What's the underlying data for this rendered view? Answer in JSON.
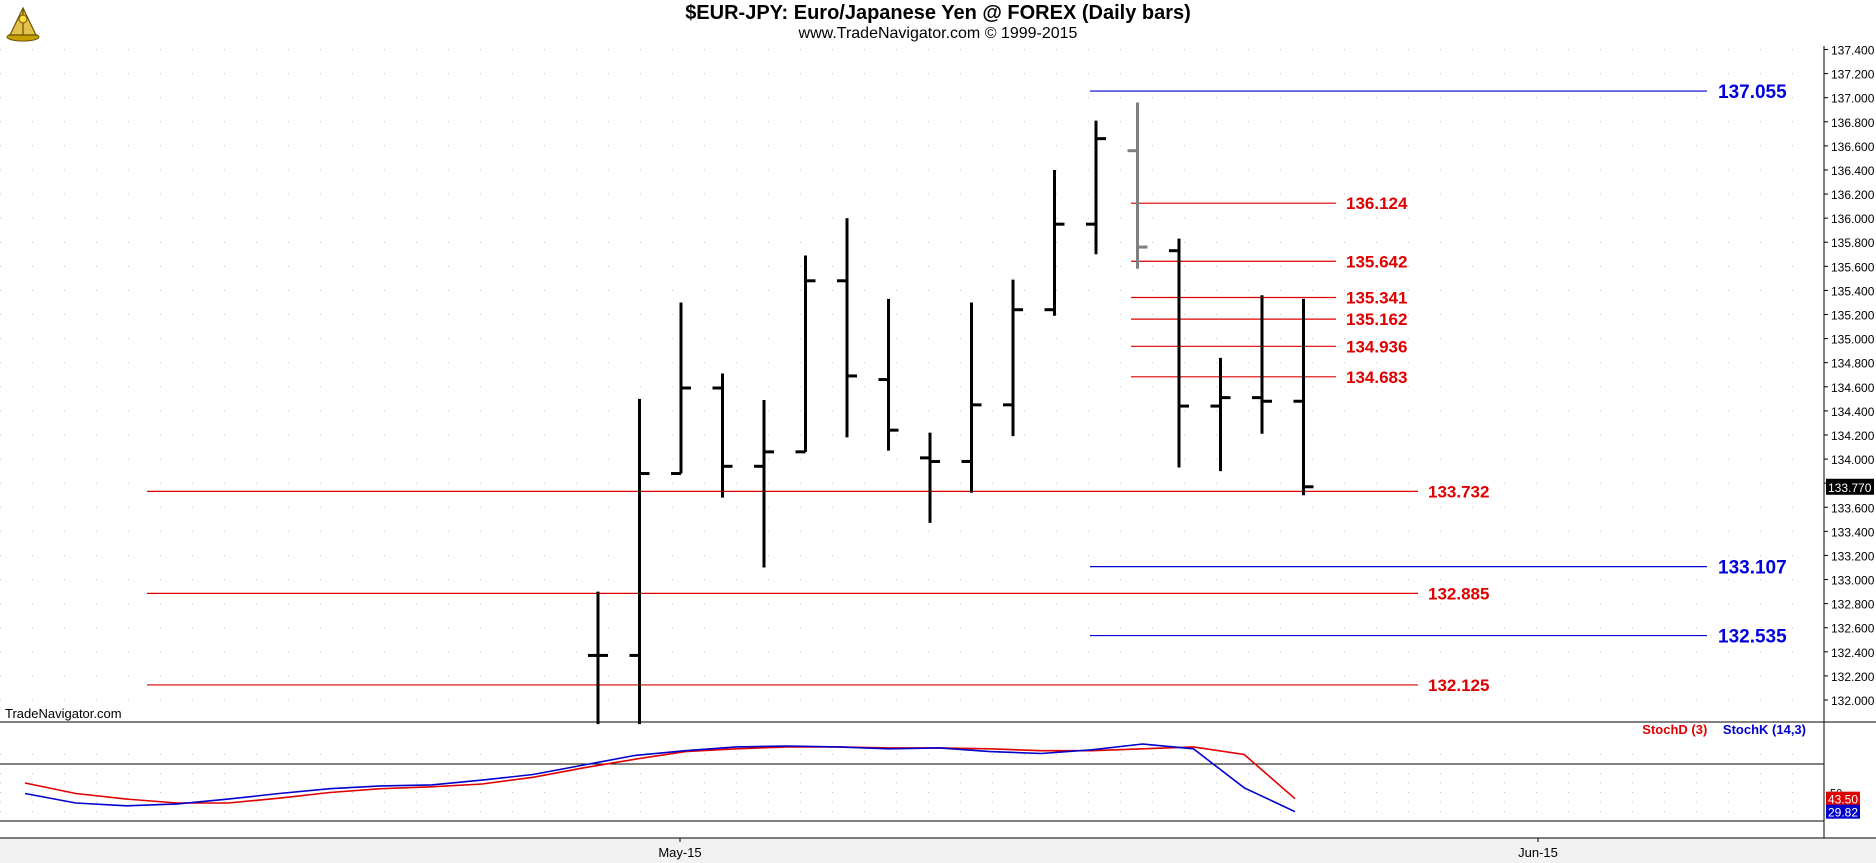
{
  "header": {
    "title": "$EUR-JPY:  Euro/Japanese Yen @ FOREX  (Daily bars)",
    "subtitle": "www.TradeNavigator.com © 1999-2015"
  },
  "watermark": "TradeNavigator.com",
  "colors": {
    "red_level": "#e00000",
    "blue_level": "#0000dd",
    "bars": "#000000",
    "last_bar": "#808080",
    "stoch_d": "#e00000",
    "stoch_k": "#0000cc"
  },
  "chart_data": [
    {
      "type": "ohlc",
      "title": "$EUR-JPY:  Euro/Japanese Yen @ FOREX  (Daily bars)",
      "ylim": [
        131.8,
        137.5
      ],
      "y_ticks": [
        "132.000",
        "132.200",
        "132.400",
        "132.600",
        "132.800",
        "133.000",
        "133.200",
        "133.400",
        "133.600",
        "133.800",
        "134.000",
        "134.200",
        "134.400",
        "134.600",
        "134.800",
        "135.000",
        "135.200",
        "135.400",
        "135.600",
        "135.800",
        "136.000",
        "136.200",
        "136.400",
        "136.600",
        "136.800",
        "137.000",
        "137.200",
        "137.400"
      ],
      "x_labels": [
        "May-15",
        "Jun-15"
      ],
      "last_price": "133.770",
      "bars": [
        {
          "o": 132.37,
          "h": 132.9,
          "l": 131.8,
          "c": 132.37
        },
        {
          "o": 132.37,
          "h": 134.5,
          "l": 131.8,
          "c": 133.88
        },
        {
          "o": 133.88,
          "h": 135.3,
          "l": 133.88,
          "c": 134.59
        },
        {
          "o": 134.59,
          "h": 134.71,
          "l": 133.68,
          "c": 133.94
        },
        {
          "o": 133.94,
          "h": 134.49,
          "l": 133.1,
          "c": 134.06
        },
        {
          "o": 134.06,
          "h": 135.69,
          "l": 134.06,
          "c": 135.48
        },
        {
          "o": 135.48,
          "h": 136.0,
          "l": 134.18,
          "c": 134.69
        },
        {
          "o": 134.66,
          "h": 135.33,
          "l": 134.07,
          "c": 134.24
        },
        {
          "o": 134.01,
          "h": 134.22,
          "l": 133.47,
          "c": 133.98
        },
        {
          "o": 133.98,
          "h": 135.3,
          "l": 133.72,
          "c": 134.45
        },
        {
          "o": 134.45,
          "h": 135.49,
          "l": 134.19,
          "c": 135.24
        },
        {
          "o": 135.24,
          "h": 136.4,
          "l": 135.19,
          "c": 135.95
        },
        {
          "o": 135.95,
          "h": 136.81,
          "l": 135.7,
          "c": 136.66
        },
        {
          "o": 136.56,
          "h": 136.96,
          "l": 135.58,
          "c": 135.76
        },
        {
          "o": 135.73,
          "h": 135.83,
          "l": 133.93,
          "c": 134.44
        },
        {
          "o": 134.44,
          "h": 134.84,
          "l": 133.9,
          "c": 134.51
        },
        {
          "o": 134.51,
          "h": 135.36,
          "l": 134.21,
          "c": 134.48
        },
        {
          "o": 134.48,
          "h": 135.33,
          "l": 133.7,
          "c": 133.77
        }
      ],
      "levels": [
        {
          "value": 137.055,
          "label": "137.055",
          "color": "blue"
        },
        {
          "value": 136.124,
          "label": "136.124",
          "color": "red"
        },
        {
          "value": 135.642,
          "label": "135.642",
          "color": "red"
        },
        {
          "value": 135.341,
          "label": "135.341",
          "color": "red"
        },
        {
          "value": 135.162,
          "label": "135.162",
          "color": "red"
        },
        {
          "value": 134.936,
          "label": "134.936",
          "color": "red"
        },
        {
          "value": 134.683,
          "label": "134.683",
          "color": "red"
        },
        {
          "value": 133.732,
          "label": "133.732",
          "color": "red"
        },
        {
          "value": 133.107,
          "label": "133.107",
          "color": "blue"
        },
        {
          "value": 132.885,
          "label": "132.885",
          "color": "red"
        },
        {
          "value": 132.535,
          "label": "132.535",
          "color": "blue"
        },
        {
          "value": 132.125,
          "label": "132.125",
          "color": "red"
        }
      ]
    },
    {
      "type": "line",
      "ylim": [
        0,
        100
      ],
      "y_ticks": [
        "50"
      ],
      "series": [
        {
          "name": "StochD (3)",
          "last_value": "43.50",
          "values": [
            null,
            null,
            null,
            null,
            null,
            null,
            null,
            null,
            null,
            null,
            null,
            null,
            null,
            null,
            null,
            null,
            96,
            98,
            98,
            97,
            97,
            96,
            94,
            94,
            96,
            98,
            90,
            43.5
          ]
        },
        {
          "name": "StochK (14,3)",
          "last_value": "29.82",
          "values": [
            null,
            null,
            null,
            null,
            null,
            null,
            null,
            null,
            null,
            null,
            null,
            null,
            null,
            null,
            null,
            null,
            98,
            99,
            98,
            96,
            97,
            93,
            91,
            95,
            101,
            96,
            55,
            29.82
          ]
        }
      ]
    }
  ]
}
